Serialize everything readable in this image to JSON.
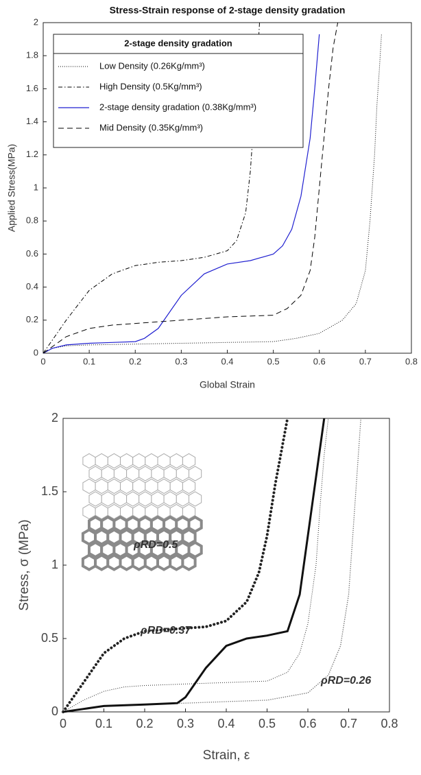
{
  "chart_data": [
    {
      "type": "line",
      "title": "Stress-Strain response of 2-stage density gradation",
      "xlabel": "Global Strain",
      "ylabel": "Applied Stress(MPa)",
      "xlim": [
        0,
        0.8
      ],
      "ylim": [
        0,
        2
      ],
      "xticks": [
        0,
        0.1,
        0.2,
        0.3,
        0.4,
        0.5,
        0.6,
        0.7,
        0.8
      ],
      "yticks": [
        0,
        0.2,
        0.4,
        0.6,
        0.8,
        1,
        1.2,
        1.4,
        1.6,
        1.8,
        2
      ],
      "grid": false,
      "legend": "upper left",
      "legend_title": "2-stage density gradation",
      "series": [
        {
          "name": "Low Density (0.26Kg/mm³)",
          "color": "#000000",
          "linestyle": "dotted",
          "x": [
            0,
            0.02,
            0.05,
            0.1,
            0.2,
            0.3,
            0.4,
            0.5,
            0.55,
            0.6,
            0.65,
            0.68,
            0.7,
            0.71,
            0.72,
            0.725,
            0.73,
            0.735
          ],
          "values": [
            0,
            0.03,
            0.045,
            0.05,
            0.055,
            0.06,
            0.065,
            0.07,
            0.09,
            0.12,
            0.2,
            0.3,
            0.5,
            0.8,
            1.2,
            1.5,
            1.7,
            1.93
          ]
        },
        {
          "name": "High Density (0.5Kg/mm³)",
          "color": "#000000",
          "linestyle": "dashdot",
          "x": [
            0,
            0.05,
            0.1,
            0.15,
            0.2,
            0.25,
            0.3,
            0.35,
            0.4,
            0.42,
            0.44,
            0.45,
            0.46,
            0.47
          ],
          "values": [
            0,
            0.2,
            0.38,
            0.48,
            0.53,
            0.55,
            0.56,
            0.58,
            0.62,
            0.68,
            0.85,
            1.1,
            1.5,
            2
          ]
        },
        {
          "name": "2-stage density gradation (0.38Kg/mm³)",
          "color": "#1f1fd0",
          "linestyle": "solid",
          "x": [
            0,
            0.02,
            0.05,
            0.1,
            0.15,
            0.2,
            0.22,
            0.25,
            0.3,
            0.35,
            0.4,
            0.45,
            0.5,
            0.52,
            0.54,
            0.56,
            0.58,
            0.59,
            0.6
          ],
          "values": [
            0,
            0.03,
            0.05,
            0.06,
            0.065,
            0.07,
            0.09,
            0.15,
            0.35,
            0.48,
            0.54,
            0.56,
            0.6,
            0.65,
            0.75,
            0.95,
            1.3,
            1.6,
            1.93
          ]
        },
        {
          "name": "Mid Density (0.35Kg/mm³)",
          "color": "#000000",
          "linestyle": "dashed",
          "x": [
            0,
            0.05,
            0.1,
            0.15,
            0.2,
            0.3,
            0.35,
            0.4,
            0.5,
            0.53,
            0.56,
            0.58,
            0.59,
            0.6,
            0.61,
            0.62,
            0.63,
            0.64
          ],
          "values": [
            0,
            0.1,
            0.15,
            0.17,
            0.18,
            0.2,
            0.21,
            0.22,
            0.23,
            0.27,
            0.35,
            0.5,
            0.7,
            1.0,
            1.3,
            1.6,
            1.85,
            2
          ]
        }
      ]
    },
    {
      "type": "line",
      "xlabel": "Strain, ε",
      "ylabel": "Stress, σ (MPa)",
      "xlim": [
        0,
        0.8
      ],
      "ylim": [
        0,
        2
      ],
      "xticks": [
        0,
        0.1,
        0.2,
        0.3,
        0.4,
        0.5,
        0.6,
        0.7,
        0.8
      ],
      "yticks": [
        0,
        0.5,
        1,
        1.5,
        2
      ],
      "grid": false,
      "annotations": [
        "ρRD=0.5",
        "ρRD=0.37",
        "ρRD=0.26"
      ],
      "series": [
        {
          "color": "#222222",
          "linestyle": "thickdotted",
          "x": [
            0,
            0.05,
            0.1,
            0.15,
            0.2,
            0.25,
            0.3,
            0.35,
            0.4,
            0.45,
            0.48,
            0.5,
            0.52,
            0.54,
            0.55
          ],
          "values": [
            0,
            0.2,
            0.4,
            0.5,
            0.55,
            0.56,
            0.57,
            0.58,
            0.62,
            0.75,
            0.95,
            1.2,
            1.55,
            1.85,
            2
          ]
        },
        {
          "color": "#222222",
          "linestyle": "dotted",
          "x": [
            0,
            0.05,
            0.1,
            0.15,
            0.2,
            0.3,
            0.4,
            0.5,
            0.55,
            0.58,
            0.6,
            0.62,
            0.63,
            0.64,
            0.65
          ],
          "values": [
            0,
            0.08,
            0.14,
            0.17,
            0.18,
            0.19,
            0.2,
            0.21,
            0.27,
            0.4,
            0.6,
            1.0,
            1.4,
            1.75,
            2
          ]
        },
        {
          "color": "#777777",
          "linestyle": "thindotted",
          "x": [
            0,
            0.1,
            0.2,
            0.3,
            0.4,
            0.5,
            0.6,
            0.65,
            0.68,
            0.7,
            0.71,
            0.72,
            0.73
          ],
          "values": [
            0,
            0.04,
            0.05,
            0.06,
            0.07,
            0.08,
            0.13,
            0.25,
            0.45,
            0.8,
            1.2,
            1.6,
            2
          ]
        },
        {
          "color": "#111111",
          "linestyle": "thick",
          "x": [
            0,
            0.05,
            0.1,
            0.2,
            0.28,
            0.3,
            0.35,
            0.4,
            0.45,
            0.5,
            0.55,
            0.58,
            0.6,
            0.62,
            0.64
          ],
          "values": [
            0,
            0.02,
            0.04,
            0.05,
            0.06,
            0.1,
            0.3,
            0.45,
            0.5,
            0.52,
            0.55,
            0.8,
            1.2,
            1.6,
            2
          ]
        }
      ]
    }
  ]
}
